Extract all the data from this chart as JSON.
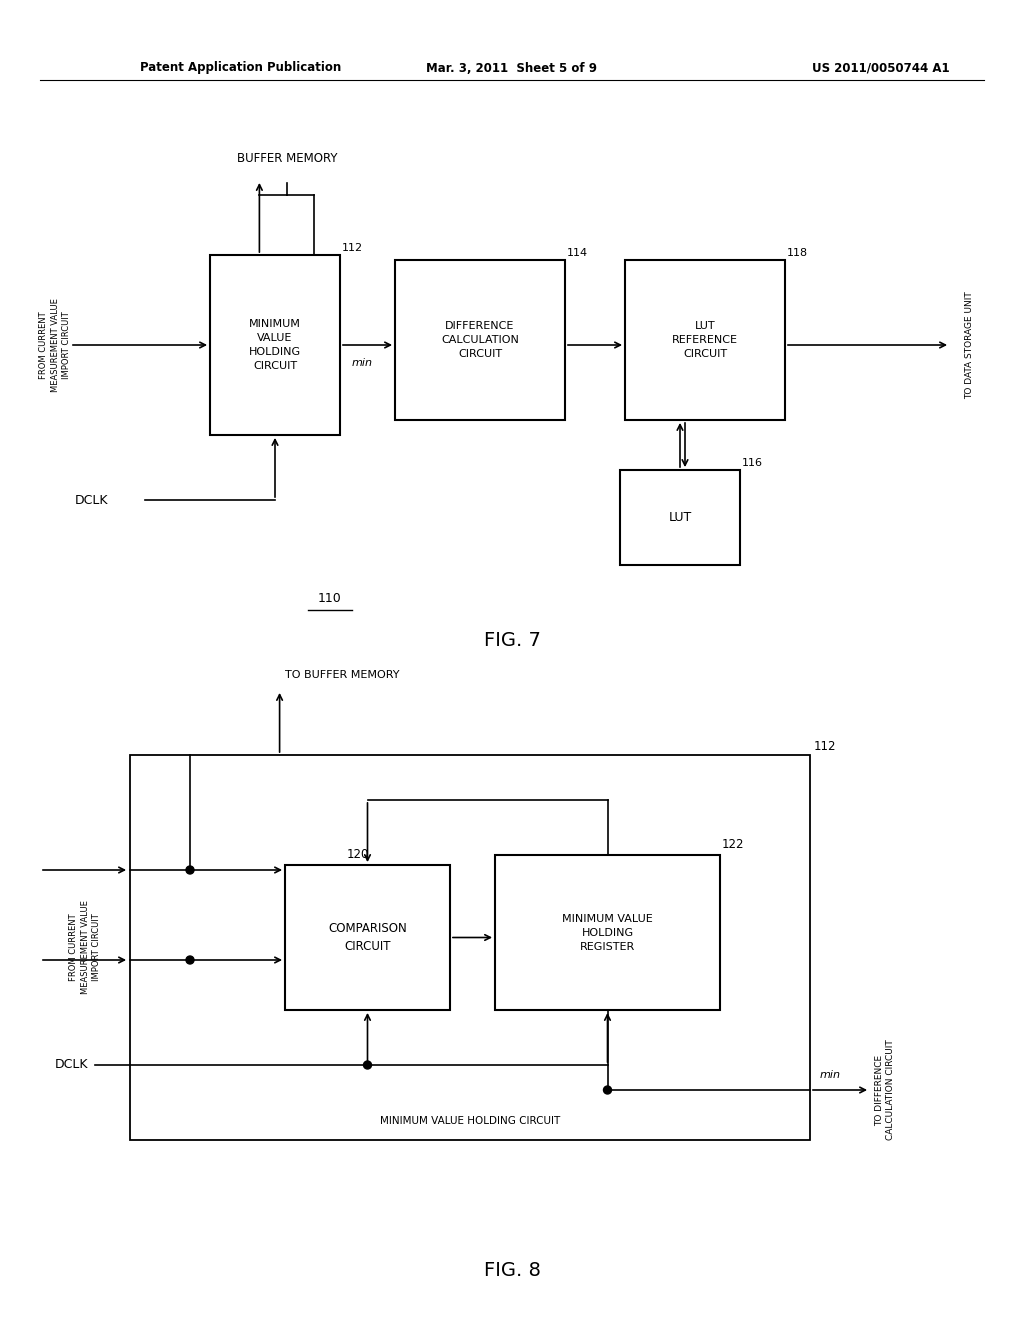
{
  "bg_color": "#ffffff",
  "header_left": "Patent Application Publication",
  "header_center": "Mar. 3, 2011  Sheet 5 of 9",
  "header_right": "US 2011/0050744 A1",
  "fig7_label": "FIG. 7",
  "fig8_label": "FIG. 8",
  "fig7_number": "110",
  "fig8_outer_label": "MINIMUM VALUE HOLDING CIRCUIT",
  "fig8_outer_num": "112"
}
